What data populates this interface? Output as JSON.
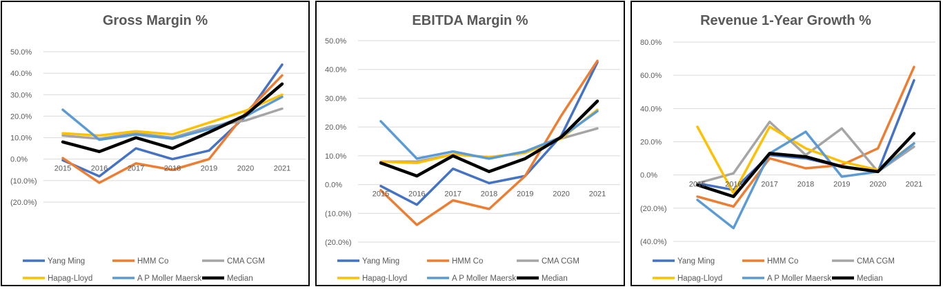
{
  "series_styles": [
    {
      "name": "Yang Ming",
      "color": "#4472C4"
    },
    {
      "name": "HMM Co",
      "color": "#ED7D31"
    },
    {
      "name": "CMA CGM",
      "color": "#A5A5A5"
    },
    {
      "name": "Hapag-Lloyd",
      "color": "#FFC000"
    },
    {
      "name": "A P Moller Maersk",
      "color": "#5B9BD5"
    },
    {
      "name": "Median",
      "color": "#000000"
    }
  ],
  "chart_data": [
    {
      "type": "line",
      "title": "Gross Margin %",
      "x": [
        "2015",
        "2016",
        "2017",
        "2018",
        "2019",
        "2020",
        "2021"
      ],
      "ylim": [
        -20,
        50
      ],
      "yticks": [
        "(20.0%)",
        "(10.0%)",
        "0.0%",
        "10.0%",
        "20.0%",
        "30.0%",
        "40.0%",
        "50.0%"
      ],
      "grid": true,
      "legend": "bottom",
      "series": [
        {
          "name": "Yang Ming",
          "values": [
            -0.5,
            -8.0,
            5.0,
            0.0,
            4.0,
            20.0,
            44.0
          ]
        },
        {
          "name": "HMM Co",
          "values": [
            0.5,
            -11.0,
            -2.0,
            -5.0,
            0.0,
            21.5,
            39.0
          ]
        },
        {
          "name": "CMA CGM",
          "values": [
            11.0,
            9.5,
            12.0,
            10.0,
            15.0,
            18.0,
            23.5
          ]
        },
        {
          "name": "Hapag-Lloyd",
          "values": [
            12.0,
            11.0,
            13.0,
            11.5,
            17.0,
            22.5,
            30.0
          ]
        },
        {
          "name": "A P Moller Maersk",
          "values": [
            23.0,
            9.0,
            11.5,
            9.5,
            14.0,
            20.0,
            29.0
          ]
        },
        {
          "name": "Median",
          "values": [
            8.0,
            3.5,
            10.0,
            5.0,
            12.5,
            20.5,
            35.0
          ]
        }
      ]
    },
    {
      "type": "line",
      "title": "EBITDA Margin %",
      "x": [
        "2015",
        "2016",
        "2017",
        "2018",
        "2019",
        "2020",
        "2021"
      ],
      "ylim": [
        -20,
        50
      ],
      "yticks": [
        "(20.0%)",
        "(10.0%)",
        "0.0%",
        "10.0%",
        "20.0%",
        "30.0%",
        "40.0%",
        "50.0%"
      ],
      "grid": true,
      "legend": "bottom",
      "series": [
        {
          "name": "Yang Ming",
          "values": [
            -0.5,
            -7.0,
            5.5,
            0.5,
            3.0,
            17.0,
            42.5
          ]
        },
        {
          "name": "HMM Co",
          "values": [
            -2.0,
            -14.0,
            -5.5,
            -8.5,
            3.0,
            24.0,
            43.0
          ]
        },
        {
          "name": "CMA CGM",
          "values": [
            8.0,
            8.0,
            10.5,
            9.5,
            11.0,
            16.0,
            19.5
          ]
        },
        {
          "name": "Hapag-Lloyd",
          "values": [
            8.0,
            7.5,
            10.5,
            9.5,
            11.0,
            16.0,
            26.0
          ]
        },
        {
          "name": "A P Moller Maersk",
          "values": [
            22.0,
            9.0,
            11.5,
            9.0,
            11.5,
            16.5,
            25.5
          ]
        },
        {
          "name": "Median",
          "values": [
            7.5,
            3.0,
            10.0,
            4.5,
            9.0,
            16.5,
            29.0
          ]
        }
      ]
    },
    {
      "type": "line",
      "title": "Revenue 1-Year Growth %",
      "x": [
        "2015",
        "2016",
        "2017",
        "2018",
        "2019",
        "2020",
        "2021"
      ],
      "ylim": [
        -40,
        80
      ],
      "yticks": [
        "(40.0%)",
        "(20.0%)",
        "0.0%",
        "20.0%",
        "40.0%",
        "60.0%",
        "80.0%"
      ],
      "grid": true,
      "legend": "bottom",
      "series": [
        {
          "name": "Yang Ming",
          "values": [
            -5.0,
            -9.0,
            12.0,
            10.0,
            5.0,
            2.0,
            57.0
          ]
        },
        {
          "name": "HMM Co",
          "values": [
            -13.0,
            -19.0,
            10.0,
            4.0,
            6.0,
            16.0,
            65.0
          ]
        },
        {
          "name": "CMA CGM",
          "values": [
            -5.0,
            1.0,
            32.0,
            12.0,
            28.0,
            2.0,
            17.0
          ]
        },
        {
          "name": "Hapag-Lloyd",
          "values": [
            29.0,
            -11.0,
            29.0,
            16.0,
            8.0,
            3.0,
            19.0
          ]
        },
        {
          "name": "A P Moller Maersk",
          "values": [
            -15.0,
            -32.0,
            13.0,
            26.0,
            -1.0,
            2.0,
            19.0
          ]
        },
        {
          "name": "Median",
          "values": [
            -6.0,
            -13.0,
            13.0,
            11.0,
            5.0,
            2.0,
            25.0
          ]
        }
      ]
    }
  ]
}
